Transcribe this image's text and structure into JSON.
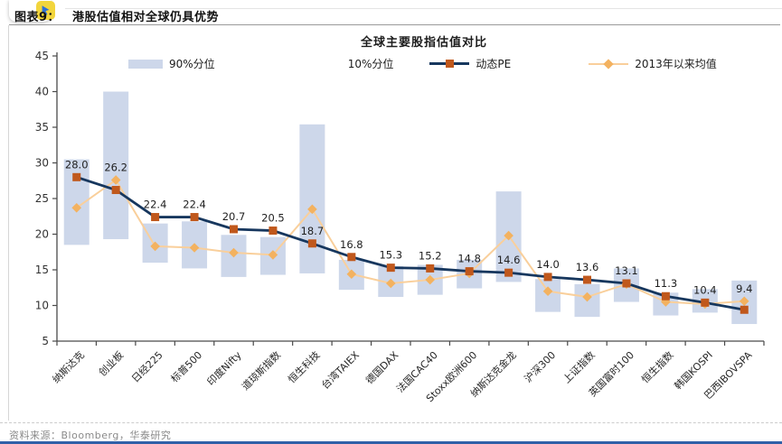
{
  "page": {
    "header": {
      "label": "图表9：",
      "title": "港股估值相对全球仍具优势"
    },
    "footer": {
      "prefix": "资料来源：",
      "link": "Bloomberg",
      "suffix": "，华泰研究"
    },
    "icons": {
      "corner": "cursor-badge-icon"
    }
  },
  "chart_data": {
    "type": "bar",
    "title": "全球主要股指估值对比",
    "xlabel": "",
    "ylabel": "",
    "ylim": [
      5,
      45
    ],
    "ytick_step": 5,
    "grid": false,
    "legend_position": "top",
    "legend": [
      "90%分位",
      "10%分位",
      "动态PE",
      "2013年以来均值"
    ],
    "categories": [
      "纳斯达克",
      "创业板",
      "日经225",
      "标普500",
      "印度Nifty",
      "道琼斯指数",
      "恒生科技",
      "台湾TAIEX",
      "德国DAX",
      "法国CAC40",
      "Stoxx欧洲600",
      "纳斯达克金龙",
      "沪深300",
      "上证指数",
      "英国富时100",
      "恒生指数",
      "韩国KOSPI",
      "巴西IBOVSPA"
    ],
    "series": [
      {
        "name": "90%分位",
        "type": "range-bar-high",
        "values": [
          30.5,
          40.0,
          21.5,
          21.8,
          19.9,
          19.6,
          35.4,
          16.4,
          15.5,
          15.7,
          16.4,
          26.0,
          13.7,
          13.0,
          15.2,
          11.8,
          12.3,
          13.5
        ]
      },
      {
        "name": "10%分位",
        "type": "range-bar-low",
        "values": [
          18.5,
          19.3,
          16.0,
          15.2,
          14.0,
          14.3,
          14.5,
          12.2,
          11.2,
          11.5,
          12.4,
          13.3,
          9.1,
          8.4,
          10.5,
          8.6,
          9.0,
          7.4
        ]
      },
      {
        "name": "动态PE",
        "type": "line",
        "data_labels": true,
        "values": [
          28.0,
          26.2,
          22.4,
          22.4,
          20.7,
          20.5,
          18.7,
          16.8,
          15.3,
          15.2,
          14.8,
          14.6,
          14.0,
          13.6,
          13.1,
          11.3,
          10.4,
          9.4
        ]
      },
      {
        "name": "2013年以来均值",
        "type": "line",
        "data_labels": false,
        "values": [
          23.7,
          27.6,
          18.3,
          18.1,
          17.4,
          17.1,
          23.5,
          14.4,
          13.1,
          13.6,
          14.5,
          19.8,
          12.0,
          11.2,
          13.0,
          10.5,
          10.2,
          10.6
        ]
      }
    ],
    "colors": {
      "band": "#cdd7ea",
      "pe_line": "#17375e",
      "pe_marker": "#c0581c",
      "mean_line": "#f9cf9b",
      "mean_marker": "#f3b260",
      "axis": "#4a4a4a",
      "label": "#1f1f1f",
      "bottom_bar": "#3060a8",
      "icon_bg": "#f2d53c",
      "icon_fg": "#2f6fd6"
    }
  }
}
